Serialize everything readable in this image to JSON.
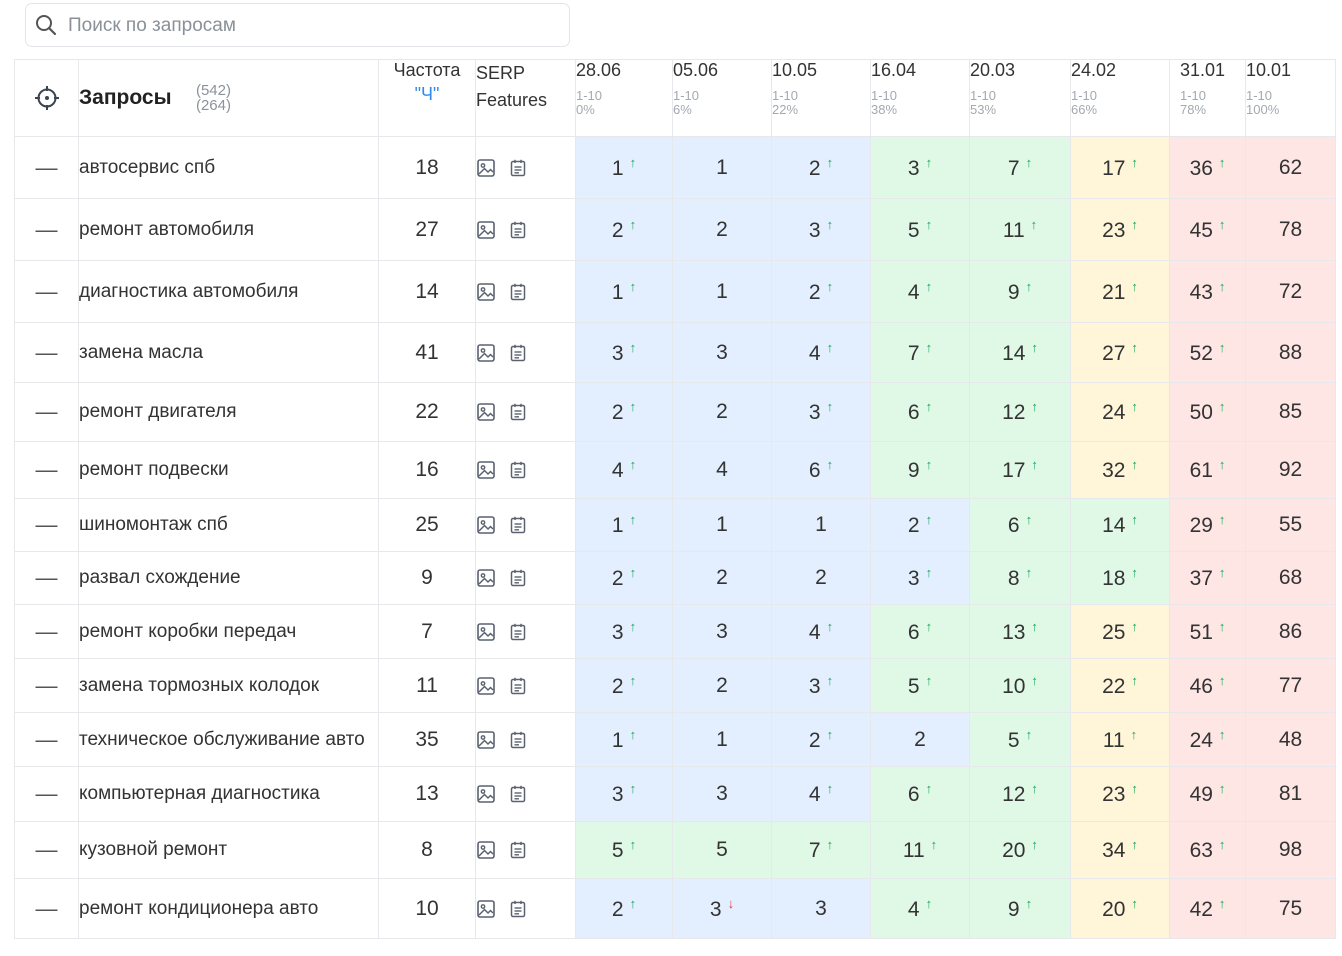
{
  "search": {
    "placeholder": "Поиск по запросам",
    "value": ""
  },
  "header": {
    "queries_label": "Запросы",
    "count_total": "(542)",
    "count_shown": "(264)",
    "frequency_label": "Частота",
    "frequency_type": "\"Ч\"",
    "serp_label_1": "SERP",
    "serp_label_2": "Features"
  },
  "colors": {
    "blue": "#e3efff",
    "green": "#e0f8e6",
    "yellow": "#fff5d9",
    "red": "#fde6e4",
    "arrow_up": "#1aab5a",
    "arrow_down": "#e23a32",
    "accent": "#2d8cf0"
  },
  "dates": [
    {
      "date": "28.06",
      "range": "1-10",
      "percent": "0%"
    },
    {
      "date": "05.06",
      "range": "1-10",
      "percent": "6%"
    },
    {
      "date": "10.05",
      "range": "1-10",
      "percent": "22%"
    },
    {
      "date": "16.04",
      "range": "1-10",
      "percent": "38%"
    },
    {
      "date": "20.03",
      "range": "1-10",
      "percent": "53%"
    },
    {
      "date": "24.02",
      "range": "1-10",
      "percent": "66%"
    },
    {
      "date": "31.01",
      "range": "1-10",
      "percent": "78%"
    },
    {
      "date": "10.01",
      "range": "1-10",
      "percent": "100%"
    }
  ],
  "rows": [
    {
      "query": "автосервис спб",
      "freq": "18",
      "cells": [
        {
          "v": "1",
          "a": "up",
          "c": "blue"
        },
        {
          "v": "1",
          "a": "",
          "c": "blue"
        },
        {
          "v": "2",
          "a": "up",
          "c": "blue"
        },
        {
          "v": "3",
          "a": "up",
          "c": "green"
        },
        {
          "v": "7",
          "a": "up",
          "c": "green"
        },
        {
          "v": "17",
          "a": "up",
          "c": "yellow"
        },
        {
          "v": "36",
          "a": "up",
          "c": "red"
        },
        {
          "v": "62",
          "a": "",
          "c": "red"
        }
      ]
    },
    {
      "query": "ремонт автомобиля",
      "freq": "27",
      "cells": [
        {
          "v": "2",
          "a": "up",
          "c": "blue"
        },
        {
          "v": "2",
          "a": "",
          "c": "blue"
        },
        {
          "v": "3",
          "a": "up",
          "c": "blue"
        },
        {
          "v": "5",
          "a": "up",
          "c": "green"
        },
        {
          "v": "11",
          "a": "up",
          "c": "green"
        },
        {
          "v": "23",
          "a": "up",
          "c": "yellow"
        },
        {
          "v": "45",
          "a": "up",
          "c": "red"
        },
        {
          "v": "78",
          "a": "",
          "c": "red"
        }
      ]
    },
    {
      "query": "диагностика автомобиля",
      "freq": "14",
      "cells": [
        {
          "v": "1",
          "a": "up",
          "c": "blue"
        },
        {
          "v": "1",
          "a": "",
          "c": "blue"
        },
        {
          "v": "2",
          "a": "up",
          "c": "blue"
        },
        {
          "v": "4",
          "a": "up",
          "c": "green"
        },
        {
          "v": "9",
          "a": "up",
          "c": "green"
        },
        {
          "v": "21",
          "a": "up",
          "c": "yellow"
        },
        {
          "v": "43",
          "a": "up",
          "c": "red"
        },
        {
          "v": "72",
          "a": "",
          "c": "red"
        }
      ]
    },
    {
      "query": "замена масла",
      "freq": "41",
      "cells": [
        {
          "v": "3",
          "a": "up",
          "c": "blue"
        },
        {
          "v": "3",
          "a": "",
          "c": "blue"
        },
        {
          "v": "4",
          "a": "up",
          "c": "blue"
        },
        {
          "v": "7",
          "a": "up",
          "c": "green"
        },
        {
          "v": "14",
          "a": "up",
          "c": "green"
        },
        {
          "v": "27",
          "a": "up",
          "c": "yellow"
        },
        {
          "v": "52",
          "a": "up",
          "c": "red"
        },
        {
          "v": "88",
          "a": "",
          "c": "red"
        }
      ]
    },
    {
      "query": "ремонт двигателя",
      "freq": "22",
      "cells": [
        {
          "v": "2",
          "a": "up",
          "c": "blue"
        },
        {
          "v": "2",
          "a": "",
          "c": "blue"
        },
        {
          "v": "3",
          "a": "up",
          "c": "blue"
        },
        {
          "v": "6",
          "a": "up",
          "c": "green"
        },
        {
          "v": "12",
          "a": "up",
          "c": "green"
        },
        {
          "v": "24",
          "a": "up",
          "c": "yellow"
        },
        {
          "v": "50",
          "a": "up",
          "c": "red"
        },
        {
          "v": "85",
          "a": "",
          "c": "red"
        }
      ]
    },
    {
      "query": "ремонт подвески",
      "freq": "16",
      "cells": [
        {
          "v": "4",
          "a": "up",
          "c": "blue"
        },
        {
          "v": "4",
          "a": "",
          "c": "blue"
        },
        {
          "v": "6",
          "a": "up",
          "c": "blue"
        },
        {
          "v": "9",
          "a": "up",
          "c": "green"
        },
        {
          "v": "17",
          "a": "up",
          "c": "green"
        },
        {
          "v": "32",
          "a": "up",
          "c": "yellow"
        },
        {
          "v": "61",
          "a": "up",
          "c": "red"
        },
        {
          "v": "92",
          "a": "",
          "c": "red"
        }
      ]
    },
    {
      "query": "шиномонтаж спб",
      "freq": "25",
      "cells": [
        {
          "v": "1",
          "a": "up",
          "c": "blue"
        },
        {
          "v": "1",
          "a": "",
          "c": "blue"
        },
        {
          "v": "1",
          "a": "",
          "c": "blue"
        },
        {
          "v": "2",
          "a": "up",
          "c": "blue"
        },
        {
          "v": "6",
          "a": "up",
          "c": "green"
        },
        {
          "v": "14",
          "a": "up",
          "c": "green"
        },
        {
          "v": "29",
          "a": "up",
          "c": "red"
        },
        {
          "v": "55",
          "a": "",
          "c": "red"
        }
      ]
    },
    {
      "query": "развал схождение",
      "freq": "9",
      "cells": [
        {
          "v": "2",
          "a": "up",
          "c": "blue"
        },
        {
          "v": "2",
          "a": "",
          "c": "blue"
        },
        {
          "v": "2",
          "a": "",
          "c": "blue"
        },
        {
          "v": "3",
          "a": "up",
          "c": "blue"
        },
        {
          "v": "8",
          "a": "up",
          "c": "green"
        },
        {
          "v": "18",
          "a": "up",
          "c": "green"
        },
        {
          "v": "37",
          "a": "up",
          "c": "red"
        },
        {
          "v": "68",
          "a": "",
          "c": "red"
        }
      ]
    },
    {
      "query": "ремонт коробки передач",
      "freq": "7",
      "cells": [
        {
          "v": "3",
          "a": "up",
          "c": "blue"
        },
        {
          "v": "3",
          "a": "",
          "c": "blue"
        },
        {
          "v": "4",
          "a": "up",
          "c": "blue"
        },
        {
          "v": "6",
          "a": "up",
          "c": "green"
        },
        {
          "v": "13",
          "a": "up",
          "c": "green"
        },
        {
          "v": "25",
          "a": "up",
          "c": "yellow"
        },
        {
          "v": "51",
          "a": "up",
          "c": "red"
        },
        {
          "v": "86",
          "a": "",
          "c": "red"
        }
      ]
    },
    {
      "query": "замена тормозных колодок",
      "freq": "11",
      "cells": [
        {
          "v": "2",
          "a": "up",
          "c": "blue"
        },
        {
          "v": "2",
          "a": "",
          "c": "blue"
        },
        {
          "v": "3",
          "a": "up",
          "c": "blue"
        },
        {
          "v": "5",
          "a": "up",
          "c": "green"
        },
        {
          "v": "10",
          "a": "up",
          "c": "green"
        },
        {
          "v": "22",
          "a": "up",
          "c": "yellow"
        },
        {
          "v": "46",
          "a": "up",
          "c": "red"
        },
        {
          "v": "77",
          "a": "",
          "c": "red"
        }
      ]
    },
    {
      "query": "техническое обслуживание авто",
      "freq": "35",
      "cells": [
        {
          "v": "1",
          "a": "up",
          "c": "blue"
        },
        {
          "v": "1",
          "a": "",
          "c": "blue"
        },
        {
          "v": "2",
          "a": "up",
          "c": "blue"
        },
        {
          "v": "2",
          "a": "",
          "c": "blue"
        },
        {
          "v": "5",
          "a": "up",
          "c": "green"
        },
        {
          "v": "11",
          "a": "up",
          "c": "yellow"
        },
        {
          "v": "24",
          "a": "up",
          "c": "red"
        },
        {
          "v": "48",
          "a": "",
          "c": "red"
        }
      ]
    },
    {
      "query": "компьютерная диагностика",
      "freq": "13",
      "cells": [
        {
          "v": "3",
          "a": "up",
          "c": "blue"
        },
        {
          "v": "3",
          "a": "",
          "c": "blue"
        },
        {
          "v": "4",
          "a": "up",
          "c": "blue"
        },
        {
          "v": "6",
          "a": "up",
          "c": "green"
        },
        {
          "v": "12",
          "a": "up",
          "c": "green"
        },
        {
          "v": "23",
          "a": "up",
          "c": "yellow"
        },
        {
          "v": "49",
          "a": "up",
          "c": "red"
        },
        {
          "v": "81",
          "a": "",
          "c": "red"
        }
      ]
    },
    {
      "query": "кузовной ремонт",
      "freq": "8",
      "cells": [
        {
          "v": "5",
          "a": "up",
          "c": "green"
        },
        {
          "v": "5",
          "a": "",
          "c": "green"
        },
        {
          "v": "7",
          "a": "up",
          "c": "green"
        },
        {
          "v": "11",
          "a": "up",
          "c": "green"
        },
        {
          "v": "20",
          "a": "up",
          "c": "green"
        },
        {
          "v": "34",
          "a": "up",
          "c": "yellow"
        },
        {
          "v": "63",
          "a": "up",
          "c": "red"
        },
        {
          "v": "98",
          "a": "",
          "c": "red"
        }
      ]
    },
    {
      "query": "ремонт кондиционера авто",
      "freq": "10",
      "cells": [
        {
          "v": "2",
          "a": "up",
          "c": "blue"
        },
        {
          "v": "3",
          "a": "down",
          "c": "blue"
        },
        {
          "v": "3",
          "a": "",
          "c": "blue"
        },
        {
          "v": "4",
          "a": "up",
          "c": "green"
        },
        {
          "v": "9",
          "a": "up",
          "c": "green"
        },
        {
          "v": "20",
          "a": "up",
          "c": "yellow"
        },
        {
          "v": "42",
          "a": "up",
          "c": "red"
        },
        {
          "v": "75",
          "a": "",
          "c": "red"
        }
      ]
    }
  ]
}
